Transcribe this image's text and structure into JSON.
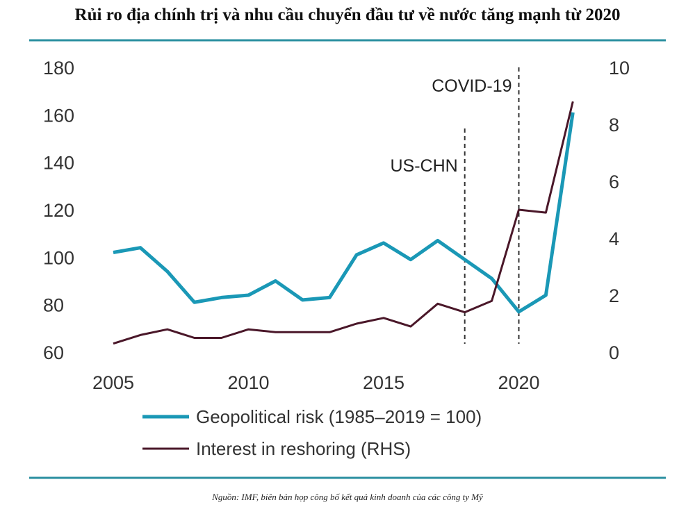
{
  "title": "Rủi ro địa chính trị và nhu cầu chuyển đầu tư về nước tăng mạnh từ 2020",
  "source": "Nguồn: IMF, biên bản họp công bố kết quả kinh doanh của các công ty Mỹ",
  "colors": {
    "geopolitical": "#1a98b6",
    "reshoring": "#4a1729",
    "rule": "#2a8fa0"
  },
  "chart_data": {
    "type": "line",
    "x": [
      2005,
      2006,
      2007,
      2008,
      2009,
      2010,
      2011,
      2012,
      2013,
      2014,
      2015,
      2016,
      2017,
      2018,
      2019,
      2020,
      2021,
      2022
    ],
    "x_ticks": [
      "2005",
      "2010",
      "2015",
      "2020"
    ],
    "y_left": {
      "ticks": [
        "60",
        "80",
        "100",
        "120",
        "140",
        "160",
        "180"
      ],
      "range": [
        60,
        180
      ]
    },
    "y_right": {
      "ticks": [
        "0",
        "2",
        "4",
        "6",
        "8",
        "10"
      ],
      "range": [
        0,
        10
      ]
    },
    "series": [
      {
        "name": "Geopolitical risk (1985–2019 = 100)",
        "axis": "left",
        "values": [
          102,
          104,
          94,
          81,
          83,
          84,
          90,
          82,
          83,
          101,
          106,
          99,
          107,
          99,
          91,
          77,
          84,
          161
        ]
      },
      {
        "name": "Interest in reshoring (RHS)",
        "axis": "right",
        "values": [
          0.3,
          0.6,
          0.8,
          0.5,
          0.5,
          0.8,
          0.7,
          0.7,
          0.7,
          1.0,
          1.2,
          0.9,
          1.7,
          1.4,
          1.8,
          5.0,
          4.9,
          8.8
        ]
      }
    ],
    "annotations": [
      {
        "label": "US-CHN",
        "x": 2018
      },
      {
        "label": "COVID-19",
        "x": 2020
      }
    ],
    "grid": false,
    "legend": "bottom-left"
  }
}
